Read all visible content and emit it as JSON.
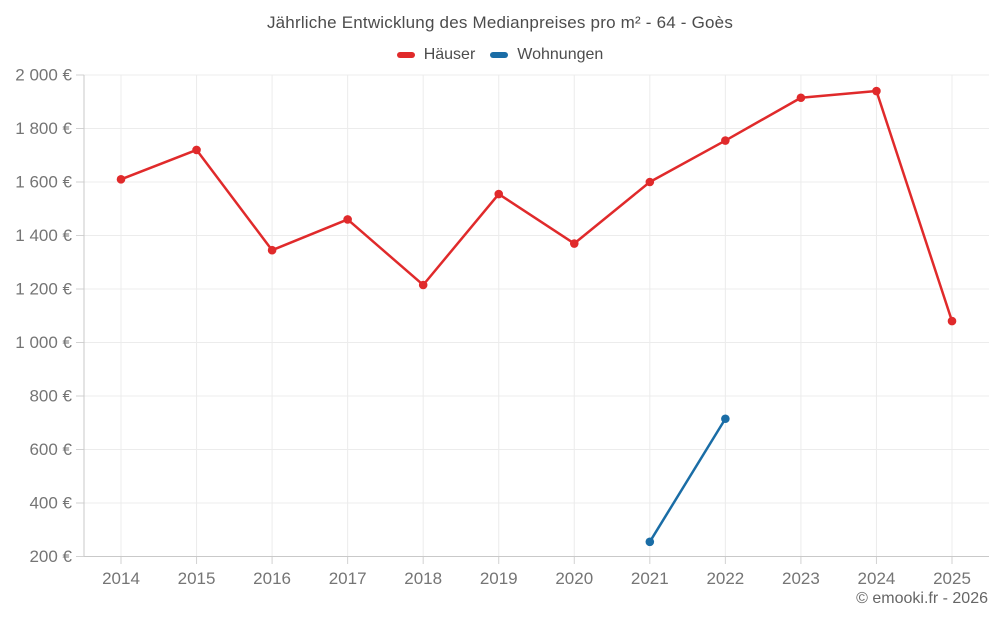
{
  "chart_data": {
    "type": "line",
    "title": "Jährliche Entwicklung des Medianpreises pro m² - 64 - Goès",
    "categories": [
      "2014",
      "2015",
      "2016",
      "2017",
      "2018",
      "2019",
      "2020",
      "2021",
      "2022",
      "2023",
      "2024",
      "2025"
    ],
    "series": [
      {
        "name": "Häuser",
        "color": "#e02a2b",
        "values": [
          1610,
          1720,
          1345,
          1460,
          1215,
          1555,
          1370,
          1600,
          1755,
          1915,
          1940,
          1080
        ]
      },
      {
        "name": "Wohnungen",
        "color": "#1a6da6",
        "values": [
          null,
          null,
          null,
          null,
          null,
          null,
          null,
          255,
          715,
          null,
          null,
          null
        ]
      }
    ],
    "xlabel": "",
    "ylabel": "",
    "ylim": [
      200,
      2000
    ],
    "ytick_step": 200,
    "y_suffix": " €",
    "thousands_separator": " ",
    "grid": true,
    "legend_position": "top"
  },
  "footer": {
    "text": "© emooki.fr - 2026"
  },
  "colors": {
    "grid": "#ececec",
    "axis": "#c9c9c9",
    "tick": "#d2d2d2",
    "axis_label": "#757575",
    "title_text": "#4c4c4c"
  }
}
